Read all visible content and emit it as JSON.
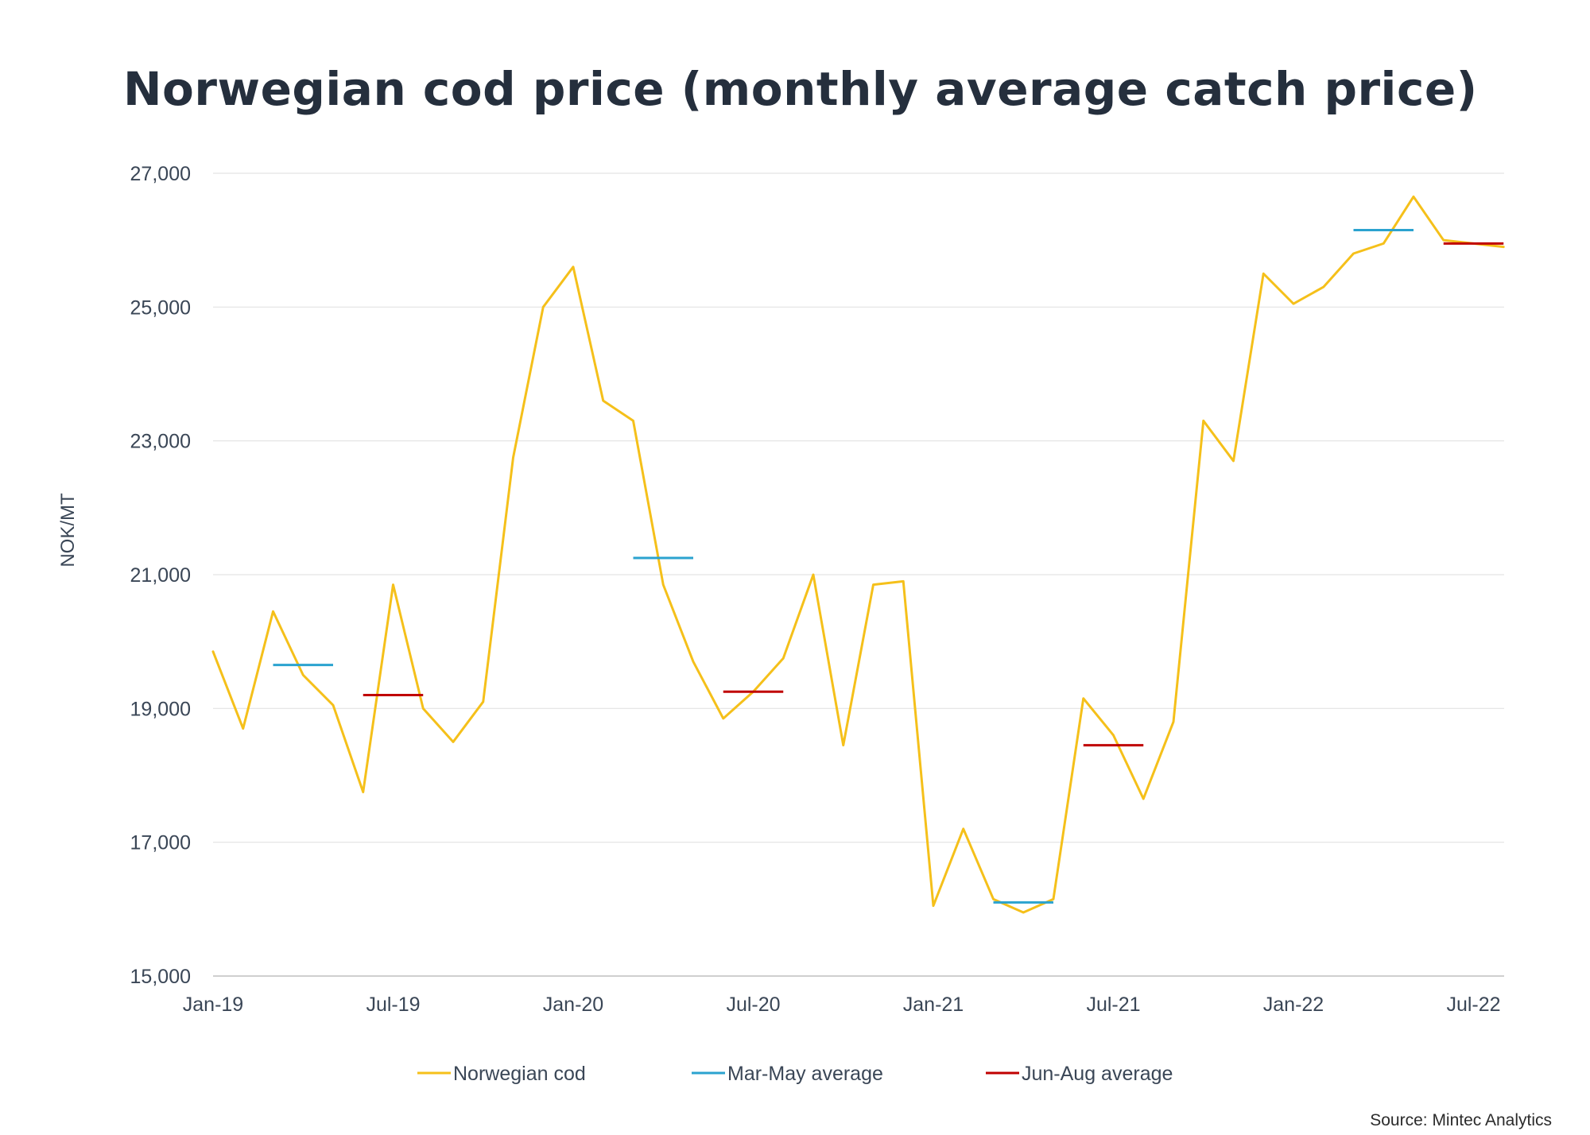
{
  "chart_data": {
    "type": "line",
    "title": "Norwegian cod price (monthly average catch price)",
    "ylabel": "NOK/MT",
    "xlabel": "",
    "ylim": [
      15000,
      27000
    ],
    "yticks": [
      15000,
      17000,
      19000,
      21000,
      23000,
      25000,
      27000
    ],
    "ytick_labels": [
      "15,000",
      "17,000",
      "19,000",
      "21,000",
      "23,000",
      "25,000",
      "27,000"
    ],
    "x": [
      "Jan-19",
      "Feb-19",
      "Mar-19",
      "Apr-19",
      "May-19",
      "Jun-19",
      "Jul-19",
      "Aug-19",
      "Sep-19",
      "Oct-19",
      "Nov-19",
      "Dec-19",
      "Jan-20",
      "Feb-20",
      "Mar-20",
      "Apr-20",
      "May-20",
      "Jun-20",
      "Jul-20",
      "Aug-20",
      "Sep-20",
      "Oct-20",
      "Nov-20",
      "Dec-20",
      "Jan-21",
      "Feb-21",
      "Mar-21",
      "Apr-21",
      "May-21",
      "Jun-21",
      "Jul-21",
      "Aug-21",
      "Sep-21",
      "Oct-21",
      "Nov-21",
      "Dec-21",
      "Jan-22",
      "Feb-22",
      "Mar-22",
      "Apr-22",
      "May-22",
      "Jun-22",
      "Jul-22",
      "Aug-22"
    ],
    "xtick_labels": [
      "Jan-19",
      "Jul-19",
      "Jan-20",
      "Jul-20",
      "Jan-21",
      "Jul-21",
      "Jan-22",
      "Jul-22"
    ],
    "grid": true,
    "legend_position": "bottom",
    "series": [
      {
        "name": "Norwegian cod",
        "color": "#f5c01a",
        "values": [
          19850,
          18700,
          20450,
          19500,
          19050,
          17750,
          20850,
          19000,
          18500,
          19100,
          22750,
          25000,
          25600,
          23600,
          23300,
          20850,
          19700,
          18850,
          19250,
          19750,
          21000,
          18450,
          20850,
          20900,
          16050,
          17200,
          16150,
          15950,
          16150,
          19150,
          18600,
          17650,
          18800,
          23300,
          22700,
          25500,
          25050,
          25300,
          25800,
          25950,
          26650,
          26000,
          25950,
          25900
        ]
      },
      {
        "name": "Mar-May average",
        "color": "#2ba3cf",
        "segments": [
          {
            "from": "Mar-19",
            "to": "May-19",
            "value": 19650
          },
          {
            "from": "Mar-20",
            "to": "May-20",
            "value": 21250
          },
          {
            "from": "Mar-21",
            "to": "May-21",
            "value": 16100
          },
          {
            "from": "Mar-22",
            "to": "May-22",
            "value": 26150
          }
        ]
      },
      {
        "name": "Jun-Aug average",
        "color": "#c00000",
        "segments": [
          {
            "from": "Jun-19",
            "to": "Aug-19",
            "value": 19200
          },
          {
            "from": "Jun-20",
            "to": "Aug-20",
            "value": 19250
          },
          {
            "from": "Jun-21",
            "to": "Aug-21",
            "value": 18450
          },
          {
            "from": "Jun-22",
            "to": "Aug-22",
            "value": 25950
          }
        ]
      }
    ],
    "source": "Source: Mintec Analytics"
  }
}
